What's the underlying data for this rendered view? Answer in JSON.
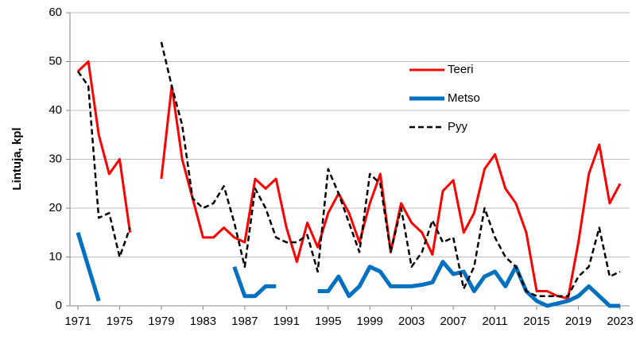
{
  "chart_data": {
    "type": "line",
    "ylabel": "Lintuja, kpl",
    "x": [
      1971,
      1972,
      1973,
      1974,
      1975,
      1976,
      1977,
      1978,
      1979,
      1980,
      1981,
      1982,
      1983,
      1984,
      1985,
      1986,
      1987,
      1988,
      1989,
      1990,
      1991,
      1992,
      1993,
      1994,
      1995,
      1996,
      1997,
      1998,
      1999,
      2000,
      2001,
      2002,
      2003,
      2004,
      2005,
      2006,
      2007,
      2008,
      2009,
      2010,
      2011,
      2012,
      2013,
      2014,
      2015,
      2016,
      2017,
      2018,
      2019,
      2020,
      2021,
      2022,
      2023
    ],
    "series": [
      {
        "name": "Teeri",
        "color": "#ff0000",
        "line_style": "solid",
        "line_width": 3,
        "values": [
          48,
          50,
          35,
          27,
          30,
          15,
          null,
          null,
          26,
          45,
          30,
          22,
          14,
          14,
          16,
          14,
          13,
          26,
          24,
          26,
          16,
          9,
          17,
          12,
          19,
          23,
          19,
          13,
          21,
          27,
          11,
          21,
          17,
          15,
          10.5,
          23.5,
          25.7,
          15,
          19,
          28,
          31,
          24,
          21,
          15,
          3,
          3,
          2,
          1.5,
          13,
          27,
          33,
          21,
          25
        ]
      },
      {
        "name": "Metso",
        "color": "#0070c0",
        "line_style": "solid",
        "line_width": 5,
        "values": [
          15,
          8,
          1,
          null,
          null,
          null,
          null,
          null,
          null,
          null,
          null,
          null,
          null,
          null,
          null,
          8,
          2,
          2,
          4,
          4,
          null,
          null,
          null,
          3,
          3,
          6,
          2,
          4,
          8,
          7,
          4,
          4,
          4,
          4.3,
          4.8,
          9,
          6.5,
          7,
          3,
          6,
          7,
          4,
          8,
          3,
          1,
          0,
          0.5,
          1,
          2,
          4,
          2,
          0,
          0
        ]
      },
      {
        "name": "Pyy",
        "color": "#000000",
        "line_style": "dashed",
        "line_width": 2.5,
        "values": [
          48,
          45,
          18,
          19,
          10,
          16,
          null,
          null,
          54,
          45,
          37,
          22,
          20,
          21,
          24.5,
          17,
          8,
          24,
          20,
          14,
          13,
          13,
          14.5,
          7,
          28,
          23,
          17,
          11,
          27,
          25,
          11,
          20,
          8,
          11,
          17.5,
          13,
          14,
          3.5,
          8,
          20,
          14,
          10,
          8,
          3,
          2,
          2,
          2,
          2,
          6,
          8,
          16,
          6,
          7
        ]
      }
    ],
    "xlim": [
      1971,
      2023
    ],
    "xticks": [
      1971,
      1975,
      1979,
      1983,
      1987,
      1991,
      1995,
      1999,
      2003,
      2007,
      2011,
      2015,
      2019,
      2023
    ],
    "ylim": [
      0,
      60
    ],
    "yticks": [
      0,
      10,
      20,
      30,
      40,
      50,
      60
    ],
    "grid": true,
    "legend": "upper-right"
  }
}
